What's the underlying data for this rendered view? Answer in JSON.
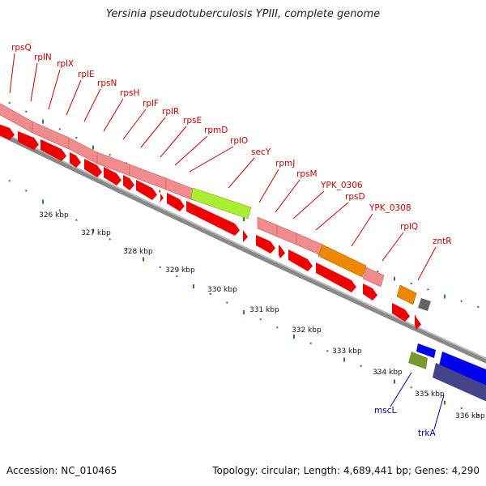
{
  "title": "Yersinia pseudotuberculosis YPIII, complete genome",
  "footer": {
    "accession": "Accession: NC_010465",
    "topology": "Topology: circular; Length: 4,689,441 bp; Genes: 4,290"
  },
  "colors": {
    "rna_gene": "#f28b8b",
    "cds": "#ee0000",
    "highlight_green": "#aaee33",
    "highlight_orange": "#ee8800",
    "grey_gene": "#666666",
    "blue_gene": "#0000ee",
    "olive_gene": "#779933",
    "navy_gene": "#444488",
    "forward_label": "#cc0000",
    "reverse_label": "#0000aa",
    "tick": "#228822"
  },
  "forward_labels": [
    "rpsQ",
    "rplN",
    "rplX",
    "rplE",
    "rpsN",
    "rpsH",
    "rplF",
    "rplR",
    "rpsE",
    "rpmD",
    "rplO",
    "secY",
    "rpmJ",
    "rpsM",
    "YPK_0306",
    "rpsD",
    "YPK_0308",
    "rplQ",
    "zntR"
  ],
  "reverse_labels": [
    "mscL",
    "trkA"
  ],
  "kbp_ticks": [
    "326 kbp",
    "327 kbp",
    "328 kbp",
    "329 kbp",
    "330 kbp",
    "331 kbp",
    "332 kbp",
    "333 kbp",
    "334 kbp",
    "335 kbp",
    "336 kbp"
  ]
}
